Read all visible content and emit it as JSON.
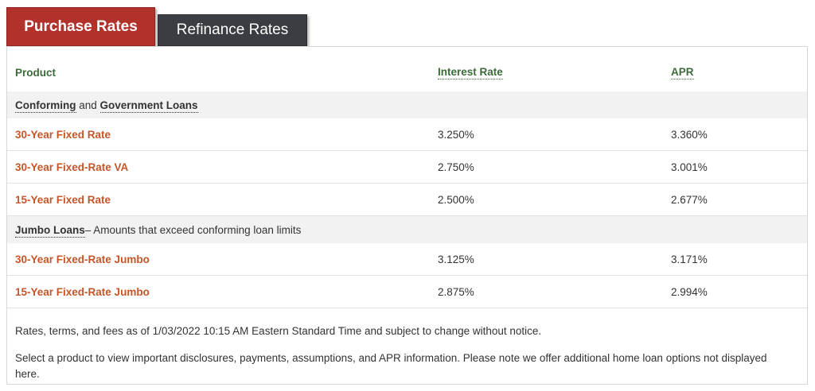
{
  "tabs": {
    "purchase_label": "Purchase Rates",
    "refinance_label": "Refinance Rates"
  },
  "table": {
    "headers": {
      "product": "Product",
      "interest_rate": "Interest Rate",
      "apr": "APR"
    },
    "sections": [
      {
        "title_part1": "Conforming",
        "connector": " and ",
        "title_part2": "Government Loans",
        "note": "",
        "rows": [
          {
            "product": "30-Year Fixed Rate",
            "interest_rate": "3.250%",
            "apr": "3.360%"
          },
          {
            "product": "30-Year Fixed-Rate VA",
            "interest_rate": "2.750%",
            "apr": "3.001%"
          },
          {
            "product": "15-Year Fixed Rate",
            "interest_rate": "2.500%",
            "apr": "2.677%"
          }
        ]
      },
      {
        "title_part1": "Jumbo Loans",
        "connector": "",
        "title_part2": "",
        "note": "– Amounts that exceed conforming loan limits",
        "rows": [
          {
            "product": "30-Year Fixed-Rate Jumbo",
            "interest_rate": "3.125%",
            "apr": "3.171%"
          },
          {
            "product": "15-Year Fixed-Rate Jumbo",
            "interest_rate": "2.875%",
            "apr": "2.994%"
          }
        ]
      }
    ]
  },
  "notes": {
    "as_of": "Rates, terms, and fees as of 1/03/2022 10:15 AM Eastern Standard Time and subject to change without notice.",
    "select_product": "Select a product to view important disclosures, payments, assumptions, and APR information. Please note we offer additional home loan options not displayed here."
  },
  "colors": {
    "active_tab": "#b3312b",
    "inactive_tab": "#3a3d42",
    "header_green": "#3c6b3a",
    "product_orange": "#c4562a"
  }
}
